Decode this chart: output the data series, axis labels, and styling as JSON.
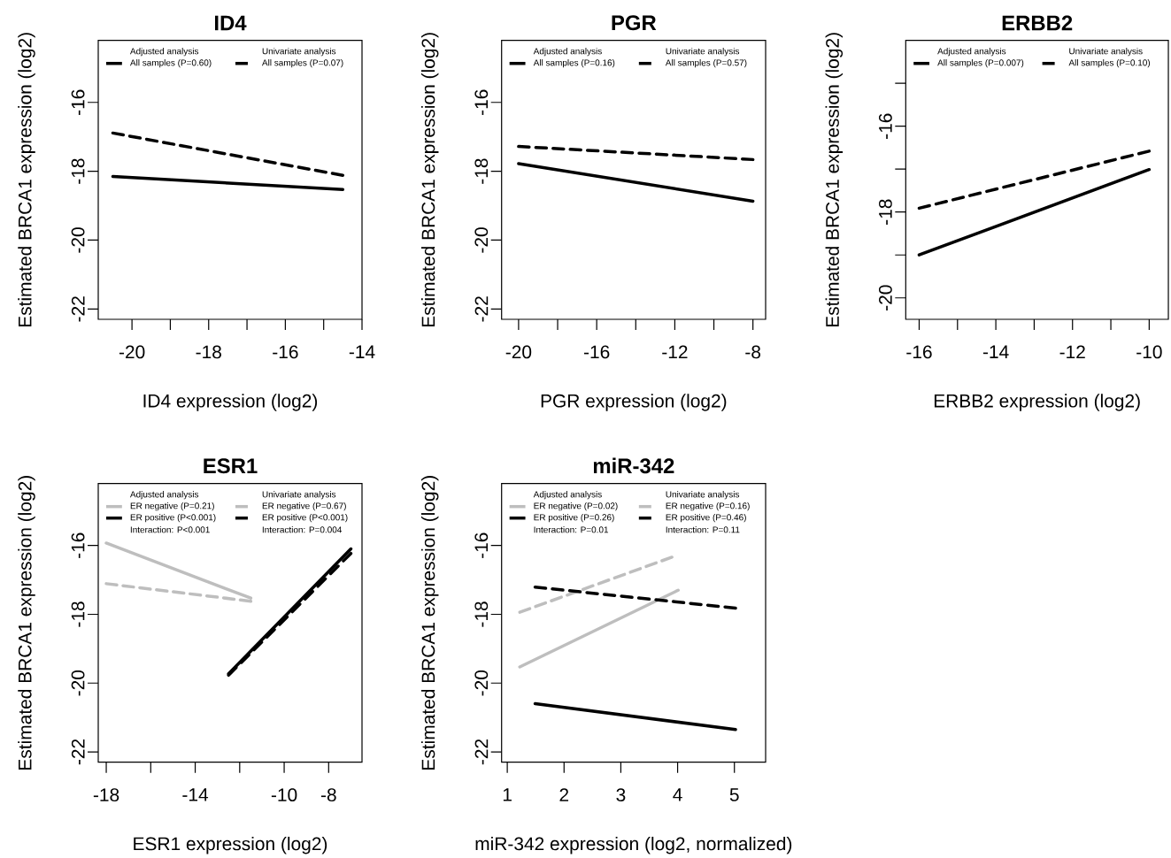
{
  "chart_data": [
    {
      "type": "line",
      "title": "ID4",
      "xlabel": "ID4 expression (log2)",
      "ylabel": "Estimated BRCA1 expression (log2)",
      "xlim": [
        -20.88,
        -14
      ],
      "ylim": [
        -22.3,
        -14.2
      ],
      "xticks": [
        -20,
        {
          "value": -19,
          "label": null
        },
        -18,
        {
          "value": -17,
          "label": null
        },
        -16,
        {
          "value": -15,
          "label": null
        },
        -14
      ],
      "yticks": [
        -22,
        -20,
        -18,
        -16
      ],
      "legend": "top",
      "series": [
        {
          "name": "All samples (P=0.60)",
          "color": "#000000",
          "line_style": "solid",
          "x": [
            -20.5,
            -14.5
          ],
          "values": [
            -18.15,
            -18.53
          ]
        },
        {
          "name": "All samples (P=0.07)",
          "color": "#000000",
          "line_style": "dashed",
          "x": [
            -20.5,
            -14.5
          ],
          "values": [
            -16.89,
            -18.12
          ]
        }
      ],
      "annotations": [
        "Adjusted analysis",
        "Univariate analysis"
      ]
    },
    {
      "type": "line",
      "title": "PGR",
      "xlabel": "PGR expression (log2)",
      "ylabel": "Estimated BRCA1 expression (log2)",
      "xlim": [
        -20.87,
        -7.35
      ],
      "ylim": [
        -22.3,
        -14.2
      ],
      "xticks": [
        -20,
        {
          "value": -18,
          "label": null
        },
        -16,
        {
          "value": -14,
          "label": null
        },
        -12,
        {
          "value": -10,
          "label": null
        },
        -8
      ],
      "yticks": [
        -22,
        -20,
        -18,
        -16
      ],
      "legend": "top",
      "series": [
        {
          "name": "All samples (P=0.16)",
          "color": "#000000",
          "line_style": "solid",
          "x": [
            -20,
            -8
          ],
          "values": [
            -17.78,
            -18.87
          ]
        },
        {
          "name": "All samples (P=0.57)",
          "color": "#000000",
          "line_style": "dashed",
          "x": [
            -20,
            -8
          ],
          "values": [
            -17.28,
            -17.66
          ]
        }
      ],
      "annotations": [
        "Adjusted analysis",
        "Univariate analysis"
      ]
    },
    {
      "type": "line",
      "title": "ERBB2",
      "xlabel": "ERBB2 expression (log2)",
      "ylabel": "Estimated BRCA1 expression (log2)",
      "xlim": [
        -16.35,
        -9.5
      ],
      "ylim": [
        -20.5,
        -14.0
      ],
      "xticks": [
        -16,
        {
          "value": -15,
          "label": null
        },
        -14,
        {
          "value": -13,
          "label": null
        },
        -12,
        {
          "value": -11,
          "label": null
        },
        -10
      ],
      "yticks": [
        -20,
        {
          "value": -19,
          "label": null
        },
        -18,
        {
          "value": -17,
          "label": null
        },
        -16,
        {
          "value": -15,
          "label": null
        }
      ],
      "legend": "top",
      "series": [
        {
          "name": "All samples (P=0.007)",
          "color": "#000000",
          "line_style": "solid",
          "x": [
            -16,
            -10
          ],
          "values": [
            -19.0,
            -17.01
          ]
        },
        {
          "name": "All samples (P=0.10)",
          "color": "#000000",
          "line_style": "dashed",
          "x": [
            -16,
            -10
          ],
          "values": [
            -17.91,
            -16.58
          ]
        }
      ],
      "annotations": [
        "Adjusted analysis",
        "Univariate analysis"
      ]
    },
    {
      "type": "line",
      "title": "ESR1",
      "xlabel": "ESR1 expression (log2)",
      "ylabel": "Estimated BRCA1 expression (log2)",
      "xlim": [
        -18.36,
        -6.5
      ],
      "ylim": [
        -22.3,
        -14.2
      ],
      "xticks": [
        -18,
        {
          "value": -16,
          "label": null
        },
        -14,
        {
          "value": -12,
          "label": null
        },
        -10,
        -8
      ],
      "yticks": [
        -22,
        -20,
        -18,
        -16
      ],
      "legend": "top",
      "series": [
        {
          "name": "ER negative (P=0.21)",
          "color": "#bebebe",
          "line_style": "solid",
          "x": [
            -18,
            -11.5
          ],
          "values": [
            -15.93,
            -17.53
          ]
        },
        {
          "name": "ER positive (P<0.001)",
          "color": "#000000",
          "line_style": "solid",
          "x": [
            -12.5,
            -7.0
          ],
          "values": [
            -19.73,
            -16.1
          ]
        },
        {
          "name": "ER negative (P=0.67)",
          "color": "#bebebe",
          "line_style": "dashed",
          "x": [
            -18,
            -11.5
          ],
          "values": [
            -17.11,
            -17.62
          ]
        },
        {
          "name": "ER positive (P<0.001)",
          "color": "#000000",
          "line_style": "dashed",
          "x": [
            -12.5,
            -7.0
          ],
          "values": [
            -19.77,
            -16.23
          ]
        }
      ],
      "annotations": [
        "Adjusted analysis",
        "Univariate analysis",
        "Interaction: P<0.001",
        "Interaction: P=0.004"
      ]
    },
    {
      "type": "line",
      "title": "miR-342",
      "xlabel": "miR-342 expression (log2, normalized)",
      "ylabel": "Estimated BRCA1 expression (log2)",
      "xlim": [
        0.9,
        5.55
      ],
      "ylim": [
        -22.3,
        -14.2
      ],
      "xticks": [
        1,
        2,
        3,
        4,
        5
      ],
      "yticks": [
        -22,
        -20,
        -18,
        -16
      ],
      "legend": "top",
      "series": [
        {
          "name": "ER negative (P=0.02)",
          "color": "#bebebe",
          "line_style": "solid",
          "x": [
            1.22,
            4.01
          ],
          "values": [
            -19.53,
            -17.3
          ]
        },
        {
          "name": "ER positive (P=0.26)",
          "color": "#000000",
          "line_style": "solid",
          "x": [
            1.49,
            5.02
          ],
          "values": [
            -20.6,
            -21.35
          ]
        },
        {
          "name": "ER negative (P=0.16)",
          "color": "#bebebe",
          "line_style": "dashed",
          "x": [
            1.22,
            3.9
          ],
          "values": [
            -17.94,
            -16.34
          ]
        },
        {
          "name": "ER positive (P=0.46)",
          "color": "#000000",
          "line_style": "dashed",
          "x": [
            1.49,
            5.02
          ],
          "values": [
            -17.21,
            -17.82
          ]
        }
      ],
      "annotations": [
        "Adjusted analysis",
        "Univariate analysis",
        "Interaction: P=0.01",
        "Interaction: P=0.11"
      ]
    }
  ]
}
